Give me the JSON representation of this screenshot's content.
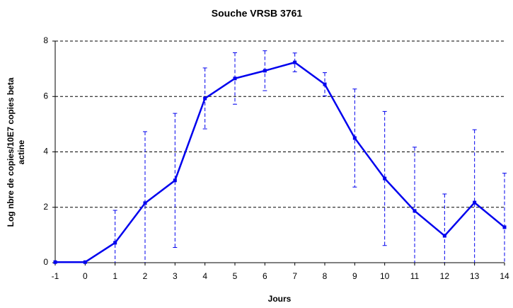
{
  "chart_data": {
    "type": "line",
    "title": "Souche VRSB 3761",
    "xlabel": "Jours",
    "ylabel": [
      "Log nbre de copies/10E7 copies beta",
      "actine"
    ],
    "x": [
      -1,
      0,
      1,
      2,
      3,
      4,
      5,
      6,
      7,
      8,
      9,
      10,
      11,
      12,
      13,
      14
    ],
    "series": [
      {
        "color": "#0000ee",
        "values": [
          0.02,
          0.02,
          0.72,
          2.15,
          2.97,
          5.93,
          6.65,
          6.93,
          7.23,
          6.44,
          4.5,
          3.04,
          1.87,
          0.97,
          2.17,
          1.28
        ],
        "errors": [
          null,
          null,
          1.17,
          2.58,
          2.42,
          1.1,
          0.93,
          0.72,
          0.34,
          0.42,
          1.77,
          2.42,
          2.3,
          1.51,
          2.63,
          1.95
        ]
      }
    ],
    "xlim": [
      -1,
      14
    ],
    "xticks": [
      -1,
      0,
      1,
      2,
      3,
      4,
      5,
      6,
      7,
      8,
      9,
      10,
      11,
      12,
      13,
      14
    ],
    "ylim": [
      0,
      8
    ],
    "yticks": [
      0,
      2,
      4,
      6,
      8
    ],
    "grid": true
  }
}
